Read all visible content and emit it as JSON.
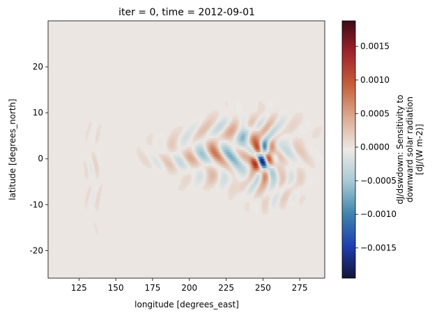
{
  "chart_data": {
    "type": "heatmap",
    "title": "iter = 0, time = 2012-09-01",
    "xlabel": "longitude [degrees_east]",
    "ylabel": "latitude [degrees_north]",
    "xlim": [
      104,
      292
    ],
    "ylim": [
      -26,
      30
    ],
    "x_ticks": [
      125,
      150,
      175,
      200,
      225,
      250,
      275
    ],
    "y_ticks": [
      -20,
      -10,
      0,
      10,
      20
    ],
    "colorbar": {
      "label": [
        "dJ/dswdown: Sensitivity to",
        "downward solar radiation",
        "[dJ/(W m-2)]"
      ],
      "vmin": -0.00195,
      "vmax": 0.00188,
      "ticks": [
        -0.0015,
        -0.001,
        -0.0005,
        0.0,
        0.0005,
        0.001,
        0.0015
      ],
      "tick_labels": [
        "−0.0015",
        "−0.0010",
        "−0.0005",
        "0.0000",
        "0.0005",
        "0.0010",
        "0.0015"
      ],
      "colormap": [
        "#141436",
        "#1f3fb0",
        "#3f84ad",
        "#a9c9d3",
        "#ece9e6",
        "#dbaa92",
        "#c5603a",
        "#a3232c",
        "#3d0b16"
      ]
    },
    "background_value": 2e-05,
    "features": [
      {
        "lon": 240,
        "lat": 2,
        "sx": 22,
        "sy": 4.5,
        "amp": 0.00075,
        "kx": 0.32,
        "ky": 0.22
      },
      {
        "lon": 215,
        "lat": 1,
        "sx": 18,
        "sy": 4,
        "amp": 0.0004,
        "kx": 0.38,
        "ky": 0.28
      },
      {
        "lon": 190,
        "lat": 0.5,
        "sx": 15,
        "sy": 2.5,
        "amp": 0.00022,
        "kx": 0.42,
        "ky": 0.3
      },
      {
        "lon": 255,
        "lat": -5,
        "sx": 12,
        "sy": 3.5,
        "amp": 0.00045,
        "kx": 0.5,
        "ky": 0.3
      },
      {
        "lon": 245,
        "lat": 6,
        "sx": 10,
        "sy": 3,
        "amp": 0.0004,
        "kx": 0.45,
        "ky": 0.35
      },
      {
        "lon": 250,
        "lat": 0,
        "sx": 6,
        "sy": 3,
        "amp": 0.0012,
        "kx": 0.6,
        "ky": 0.45
      },
      {
        "lon": 135,
        "lat": -3,
        "sx": 4,
        "sy": 8,
        "amp": 0.00015,
        "kx": 0.8,
        "ky": 0.2
      }
    ]
  }
}
